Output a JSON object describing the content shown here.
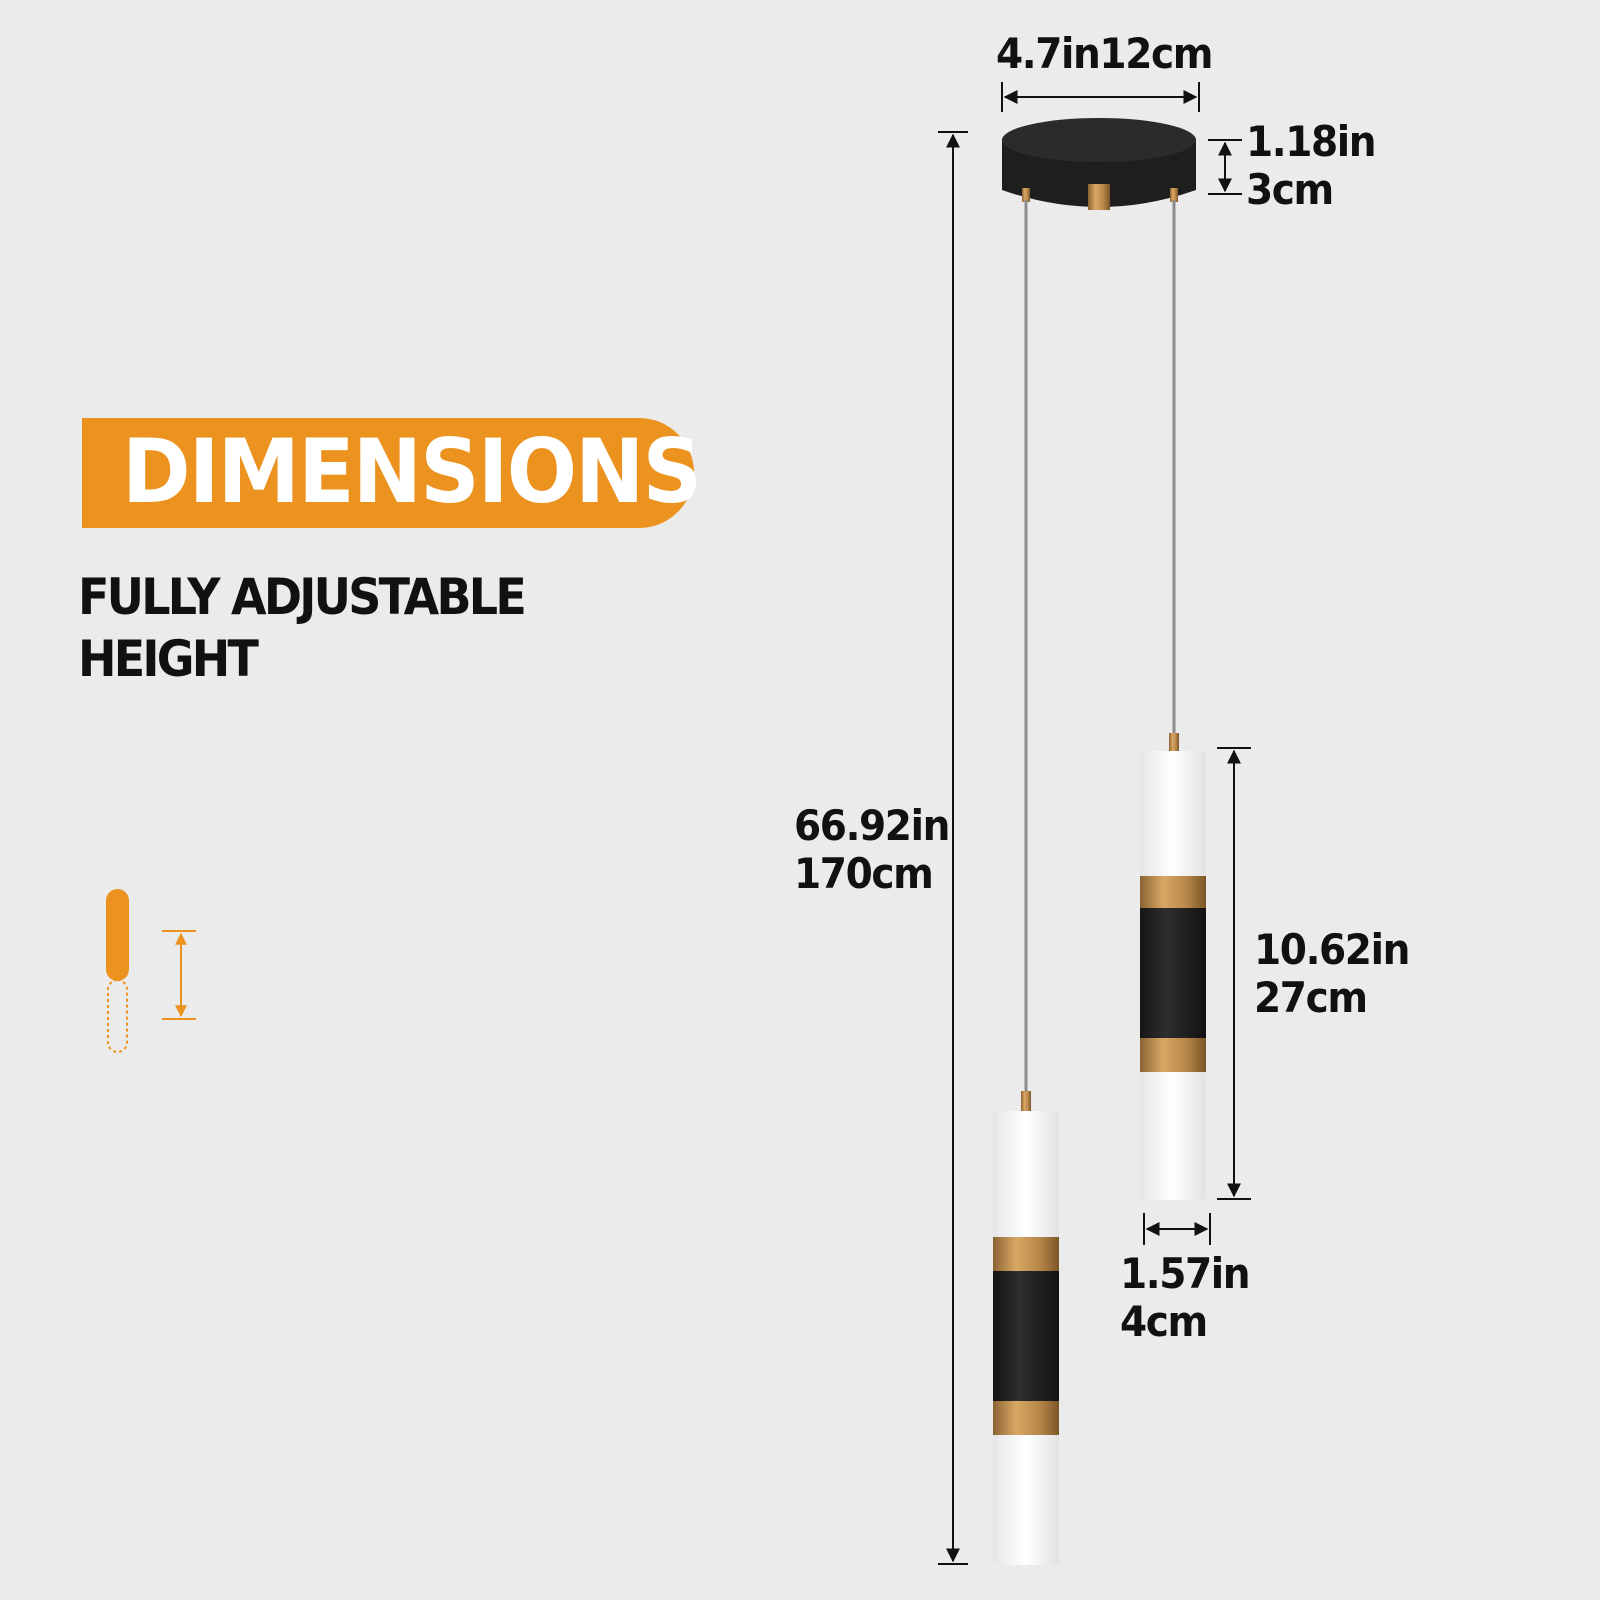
{
  "heading": {
    "title": "DIMENSIONS"
  },
  "subtitle": {
    "line1": "FULLY ADJUSTABLE",
    "line2": "HEIGHT"
  },
  "dimensions": {
    "canopy_width": "4.7in12cm",
    "canopy_height_in": "1.18in",
    "canopy_height_cm": "3cm",
    "overall_height_in": "66.92in",
    "overall_height_cm": "170cm",
    "shade_length_in": "10.62in",
    "shade_length_cm": "27cm",
    "shade_diameter_in": "1.57in",
    "shade_diameter_cm": "4cm"
  },
  "colors": {
    "background": "#ebebeb",
    "accent": "#ec931f",
    "text": "#111111",
    "canopy": "#1e1e1e",
    "brass": "#b8874a",
    "cable": "#8c8c8c",
    "shade": "#fafafa"
  },
  "icons": [
    "adjustable-height-icon"
  ]
}
